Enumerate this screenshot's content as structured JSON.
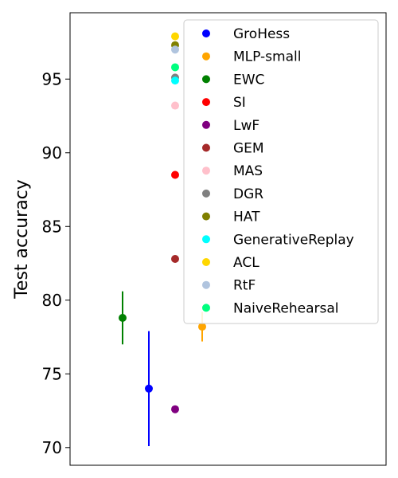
{
  "chart_data": {
    "type": "scatter",
    "title": "",
    "xlabel": "",
    "ylabel": "Test accuracy",
    "ylim": [
      68.8,
      99.5
    ],
    "yticks": [
      70,
      75,
      80,
      85,
      90,
      95
    ],
    "xticks_visible": false,
    "grid": false,
    "legend_position": "upper right",
    "series": [
      {
        "name": "GroHess",
        "color": "#0000ff",
        "x": 1,
        "y": 74.0,
        "error": 3.9
      },
      {
        "name": "MLP-small",
        "color": "#ffa500",
        "x": 3,
        "y": 78.2,
        "error": 1.0
      },
      {
        "name": "EWC",
        "color": "#008000",
        "x": 0,
        "y": 78.8,
        "error": 1.8
      },
      {
        "name": "SI",
        "color": "#ff0000",
        "x": 2,
        "y": 88.5,
        "error": 0
      },
      {
        "name": "LwF",
        "color": "#800080",
        "x": 2,
        "y": 72.6,
        "error": 0
      },
      {
        "name": "GEM",
        "color": "#a52a2a",
        "x": 2,
        "y": 82.8,
        "error": 0
      },
      {
        "name": "MAS",
        "color": "#ffc0cb",
        "x": 2,
        "y": 93.2,
        "error": 0
      },
      {
        "name": "DGR",
        "color": "#808080",
        "x": 2,
        "y": 95.1,
        "error": 0
      },
      {
        "name": "HAT",
        "color": "#808000",
        "x": 2,
        "y": 97.3,
        "error": 0
      },
      {
        "name": "GenerativeReplay",
        "color": "#00ffff",
        "x": 2,
        "y": 94.9,
        "error": 0
      },
      {
        "name": "ACL",
        "color": "#ffd700",
        "x": 2,
        "y": 97.9,
        "error": 0
      },
      {
        "name": "RtF",
        "color": "#b0c4de",
        "x": 2,
        "y": 97.0,
        "error": 0
      },
      {
        "name": "NaiveRehearsal",
        "color": "#00ff7f",
        "x": 2,
        "y": 95.8,
        "error": 0
      }
    ]
  }
}
